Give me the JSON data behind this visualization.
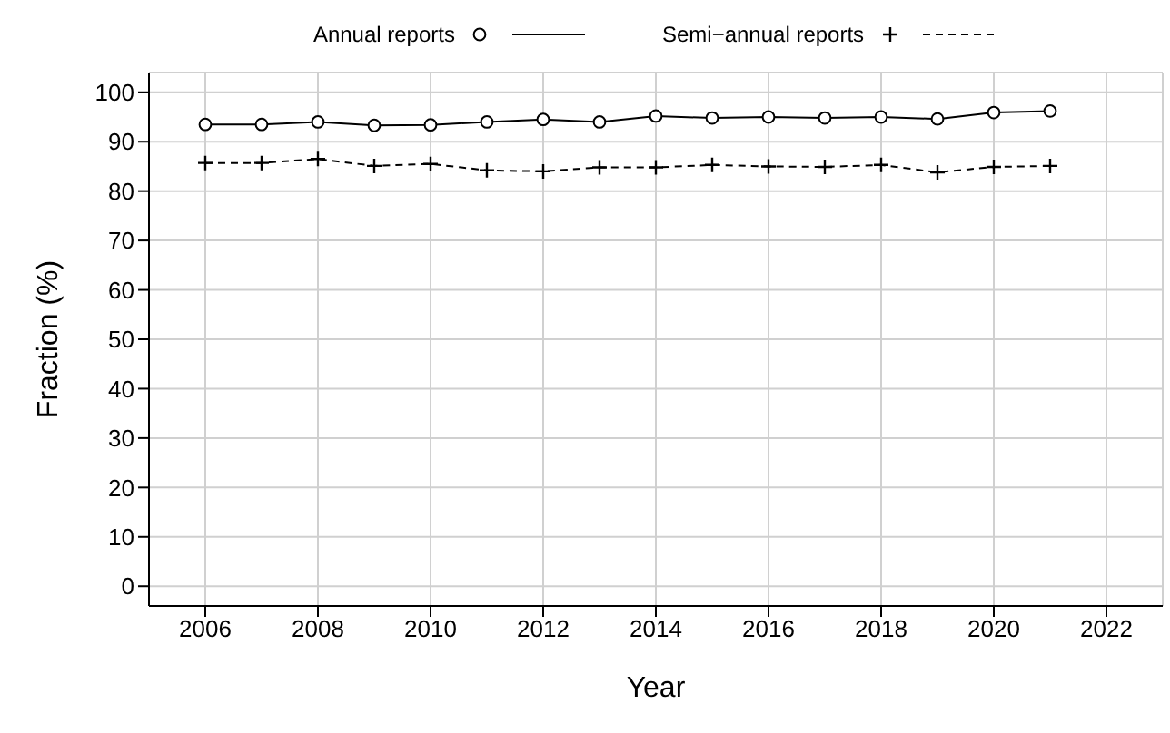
{
  "chart_data": {
    "type": "line",
    "xlabel": "Year",
    "ylabel": "Fraction (%)",
    "x": [
      2006,
      2007,
      2008,
      2009,
      2010,
      2011,
      2012,
      2013,
      2014,
      2015,
      2016,
      2017,
      2018,
      2019,
      2020,
      2021
    ],
    "series": [
      {
        "name": "Annual reports",
        "color": "#000000",
        "marker": "circle",
        "line_style": "solid",
        "values": [
          93.5,
          93.5,
          94,
          93.3,
          93.4,
          94,
          94.5,
          94,
          95.2,
          94.8,
          95,
          94.8,
          95,
          94.6,
          95.9,
          96.2
        ]
      },
      {
        "name": "Semi−annual reports",
        "color": "#000000",
        "marker": "cross",
        "line_style": "dashed",
        "values": [
          85.7,
          85.7,
          86.5,
          85.1,
          85.5,
          84.2,
          84,
          84.8,
          84.8,
          85.3,
          85,
          84.9,
          85.3,
          83.8,
          84.9,
          85.1
        ]
      }
    ],
    "xlim": [
      2005,
      2023
    ],
    "xticks": [
      2006,
      2008,
      2010,
      2012,
      2014,
      2016,
      2018,
      2020,
      2022
    ],
    "ylim": [
      -4,
      104
    ],
    "yticks": [
      0,
      10,
      20,
      30,
      40,
      50,
      60,
      70,
      80,
      90,
      100
    ],
    "grid": true,
    "legend": "top"
  }
}
